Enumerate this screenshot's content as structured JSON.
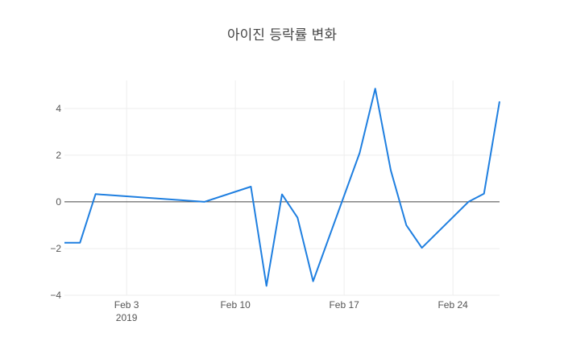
{
  "chart_data": {
    "type": "line",
    "title": "아이진 등락률 변화",
    "xlabel": "",
    "ylabel": "",
    "x_ticks": [
      {
        "date": "2019-02-03",
        "label": "Feb 3",
        "sublabel": "2019"
      },
      {
        "date": "2019-02-10",
        "label": "Feb 10",
        "sublabel": ""
      },
      {
        "date": "2019-02-17",
        "label": "Feb 17",
        "sublabel": ""
      },
      {
        "date": "2019-02-24",
        "label": "Feb 24",
        "sublabel": ""
      }
    ],
    "y_ticks": [
      4,
      2,
      0,
      -2,
      -4
    ],
    "xlim": [
      "2019-01-30",
      "2019-02-26"
    ],
    "ylim": [
      -4,
      5.2
    ],
    "grid": true,
    "legend": "none",
    "series": [
      {
        "color": "#1f7fe0",
        "points": [
          {
            "x": "2019-01-30",
            "y": -1.75
          },
          {
            "x": "2019-01-31",
            "y": -1.75
          },
          {
            "x": "2019-02-01",
            "y": 0.33
          },
          {
            "x": "2019-02-08",
            "y": 0.0
          },
          {
            "x": "2019-02-11",
            "y": 0.65
          },
          {
            "x": "2019-02-12",
            "y": -3.6
          },
          {
            "x": "2019-02-13",
            "y": 0.32
          },
          {
            "x": "2019-02-14",
            "y": -0.68
          },
          {
            "x": "2019-02-15",
            "y": -3.4
          },
          {
            "x": "2019-02-18",
            "y": 2.1
          },
          {
            "x": "2019-02-19",
            "y": 4.85
          },
          {
            "x": "2019-02-20",
            "y": 1.35
          },
          {
            "x": "2019-02-21",
            "y": -1.0
          },
          {
            "x": "2019-02-22",
            "y": -1.97
          },
          {
            "x": "2019-02-25",
            "y": 0.0
          },
          {
            "x": "2019-02-26",
            "y": 0.35
          },
          {
            "x": "2019-02-27",
            "y": 4.3
          }
        ]
      }
    ]
  }
}
